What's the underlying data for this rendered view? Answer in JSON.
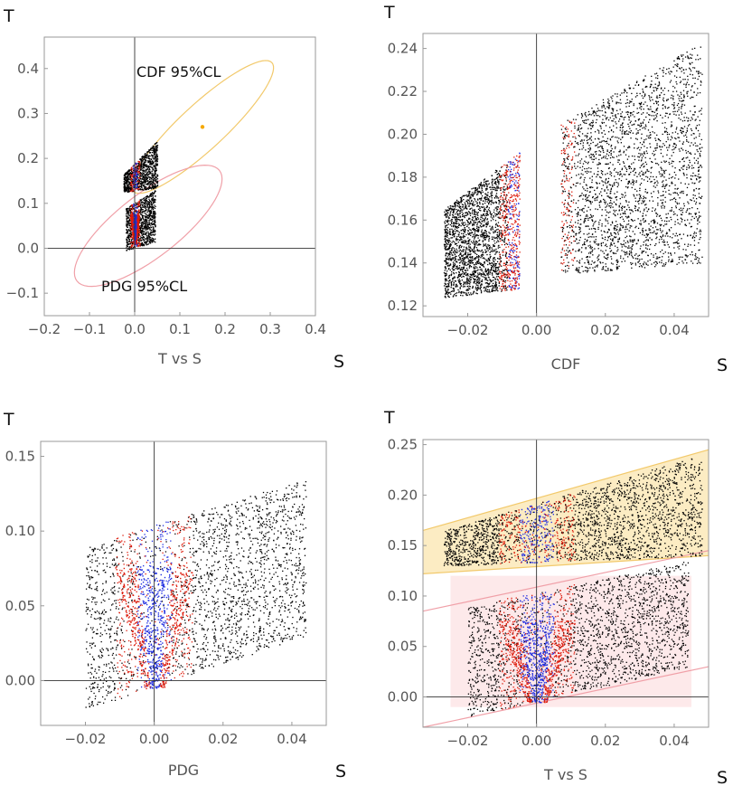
{
  "colors": {
    "frame": "#999999",
    "axis_line": "#333333",
    "cdf_ellipse": "#f2c96b",
    "cdf_center": "#f5a800",
    "cdf_band_fill": "#fbe9b8",
    "pdg_ellipse": "#f0a0a8",
    "pdg_band_fill": "#fde9ea",
    "points_black": "#000000",
    "points_red": "#dd1a0a",
    "points_blue": "#1f2de0"
  },
  "chart_data": [
    {
      "id": "p1",
      "type": "scatter",
      "xlabel": "T vs S",
      "x_var": "S",
      "y_var": "T",
      "xlim": [
        -0.2,
        0.4
      ],
      "ylim": [
        -0.15,
        0.47
      ],
      "xticks": [
        "-0.2",
        "-0.1",
        "0.0",
        "0.1",
        "0.2",
        "0.3",
        "0.4"
      ],
      "yticks": [
        "-0.1",
        "0.0",
        "0.1",
        "0.2",
        "0.3",
        "0.4"
      ],
      "ellipses": [
        {
          "name": "CDF 95%CL",
          "center": [
            0.15,
            0.27
          ],
          "semi_axes": [
            0.21,
            0.05
          ],
          "angle_deg": 43
        },
        {
          "name": "PDG 95%CL",
          "center": [
            0.03,
            0.05
          ],
          "semi_axes": [
            0.2,
            0.07
          ],
          "angle_deg": 38
        }
      ],
      "annotations": [
        "CDF 95%CL",
        "PDG 95%CL"
      ],
      "marker": {
        "name": "CDF best fit",
        "x": 0.15,
        "y": 0.27
      },
      "clouds": [
        {
          "smin": -0.025,
          "smax": 0.05,
          "tlow": [
            0.125,
            0.135
          ],
          "thigh": [
            0.165,
            0.24
          ]
        },
        {
          "smin": -0.02,
          "smax": 0.045,
          "tlow": [
            -0.005,
            0.015
          ],
          "thigh": [
            0.09,
            0.13
          ]
        }
      ]
    },
    {
      "id": "p2",
      "type": "scatter",
      "xlabel": "CDF",
      "x_var": "S",
      "y_var": "T",
      "xlim": [
        -0.033,
        0.05
      ],
      "ylim": [
        0.115,
        0.247
      ],
      "xticks": [
        "-0.02",
        "0.00",
        "0.02",
        "0.04"
      ],
      "yticks": [
        "0.12",
        "0.14",
        "0.16",
        "0.18",
        "0.20",
        "0.22",
        "0.24"
      ],
      "clouds": [
        {
          "smin": -0.027,
          "smax": -0.005,
          "tlow": [
            0.124,
            0.128
          ],
          "thigh": [
            0.165,
            0.192
          ]
        },
        {
          "smin": 0.007,
          "smax": 0.048,
          "tlow": [
            0.135,
            0.14
          ],
          "thigh": [
            0.205,
            0.243
          ]
        }
      ]
    },
    {
      "id": "p3",
      "type": "scatter",
      "xlabel": "PDG",
      "x_var": "S",
      "y_var": "T",
      "xlim": [
        -0.033,
        0.05
      ],
      "ylim": [
        -0.03,
        0.16
      ],
      "xticks": [
        "-0.02",
        "0.00",
        "0.02",
        "0.04"
      ],
      "yticks": [
        "0.00",
        "0.05",
        "0.10",
        "0.15"
      ],
      "clouds": [
        {
          "smin": -0.02,
          "smax": 0.044,
          "tlow": [
            -0.02,
            0.03
          ],
          "thigh": [
            0.09,
            0.135
          ]
        }
      ]
    },
    {
      "id": "p4",
      "type": "scatter",
      "xlabel": "T vs S",
      "x_var": "S",
      "y_var": "T",
      "xlim": [
        -0.033,
        0.05
      ],
      "ylim": [
        -0.03,
        0.255
      ],
      "xticks": [
        "-0.02",
        "0.00",
        "0.02",
        "0.04"
      ],
      "yticks": [
        "0.00",
        "0.05",
        "0.10",
        "0.15",
        "0.20",
        "0.25"
      ],
      "bands": [
        {
          "name": "CDF allowed band",
          "smin": -0.033,
          "smax": 0.05,
          "low": [
            0.122,
            0.14
          ],
          "high": [
            0.165,
            0.245
          ]
        },
        {
          "name": "PDG allowed band",
          "smin": -0.033,
          "smax": 0.05,
          "low": [
            -0.03,
            0.03
          ],
          "high": [
            0.085,
            0.145
          ]
        }
      ],
      "shaded_rect": {
        "smin": -0.025,
        "smax": 0.045,
        "tmin": -0.01,
        "tmax": 0.12
      },
      "clouds": [
        {
          "smin": -0.027,
          "smax": 0.048,
          "tlow": [
            0.13,
            0.14
          ],
          "thigh": [
            0.165,
            0.24
          ]
        },
        {
          "smin": -0.02,
          "smax": 0.044,
          "tlow": [
            -0.02,
            0.03
          ],
          "thigh": [
            0.09,
            0.135
          ]
        }
      ]
    }
  ]
}
